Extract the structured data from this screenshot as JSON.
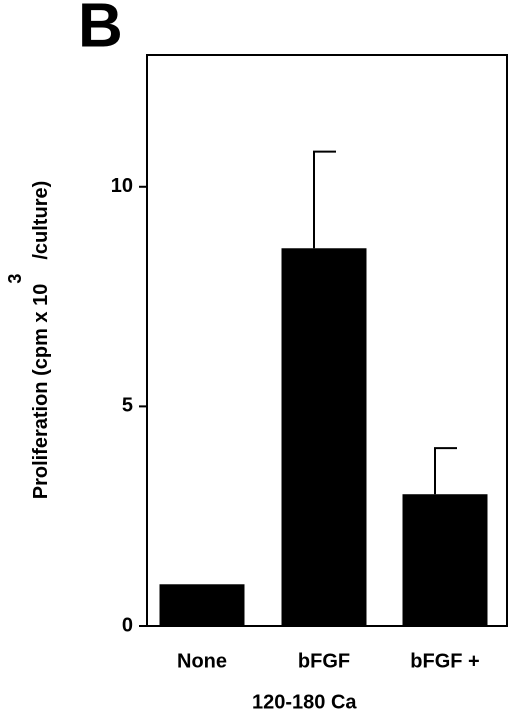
{
  "chart_data": {
    "type": "bar",
    "panel_label": "B",
    "y_label": "Proliferation  (cpm  x  10",
    "y_label_superscript": "3",
    "y_label_suffix": "/culture)",
    "categories": [
      "None",
      "bFGF",
      "bFGF +"
    ],
    "x_annotation": "120-180  Ca",
    "values": [
      0.95,
      8.6,
      3.0
    ],
    "errors": [
      null,
      2.2,
      1.05
    ],
    "color": "#000000",
    "ylim": [
      0,
      13
    ],
    "yticks": [
      0,
      5,
      10
    ],
    "grid": false
  }
}
